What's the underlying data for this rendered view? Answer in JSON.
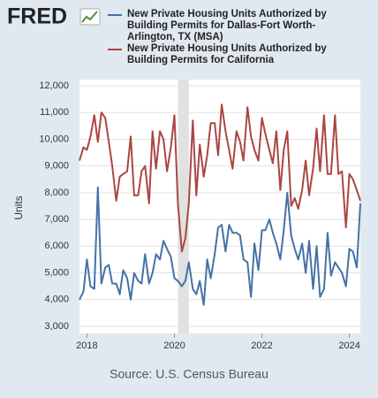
{
  "logo": "FRED",
  "chart_data": {
    "type": "line",
    "y_label": "Units",
    "source": "Source: U.S. Census Bureau",
    "x": [
      2017.83,
      2017.92,
      2018,
      2018.08,
      2018.17,
      2018.25,
      2018.33,
      2018.42,
      2018.5,
      2018.58,
      2018.67,
      2018.75,
      2018.83,
      2018.92,
      2019,
      2019.08,
      2019.17,
      2019.25,
      2019.33,
      2019.42,
      2019.5,
      2019.58,
      2019.67,
      2019.75,
      2019.83,
      2019.92,
      2020,
      2020.08,
      2020.17,
      2020.25,
      2020.33,
      2020.42,
      2020.5,
      2020.58,
      2020.67,
      2020.75,
      2020.83,
      2020.92,
      2021,
      2021.08,
      2021.17,
      2021.25,
      2021.33,
      2021.42,
      2021.5,
      2021.58,
      2021.67,
      2021.75,
      2021.83,
      2021.92,
      2022,
      2022.08,
      2022.17,
      2022.25,
      2022.33,
      2022.42,
      2022.5,
      2022.58,
      2022.67,
      2022.75,
      2022.83,
      2022.92,
      2023,
      2023.08,
      2023.17,
      2023.25,
      2023.33,
      2023.42,
      2023.5,
      2023.58,
      2023.67,
      2023.75,
      2023.83,
      2023.92,
      2024,
      2024.08,
      2024.17,
      2024.25
    ],
    "series": [
      {
        "name": "New Private Housing Units Authorized by Building Permits for Dallas-Fort Worth-Arlington, TX (MSA)",
        "color": "#4572a7",
        "values": [
          4000,
          4300,
          5500,
          4500,
          4400,
          8200,
          4600,
          5200,
          5300,
          4600,
          4600,
          4200,
          5100,
          4800,
          4000,
          5000,
          4700,
          4600,
          5700,
          4600,
          5000,
          5700,
          5500,
          6200,
          5900,
          5600,
          4800,
          4700,
          4500,
          4700,
          5400,
          4400,
          4200,
          4700,
          3800,
          5500,
          4800,
          5700,
          6700,
          6800,
          5800,
          6800,
          6500,
          6500,
          6400,
          5500,
          5400,
          4100,
          6100,
          5100,
          6600,
          6600,
          7000,
          6500,
          6100,
          5500,
          6600,
          8000,
          6400,
          5900,
          5500,
          6100,
          5000,
          6200,
          4400,
          6000,
          4100,
          4400,
          6500,
          4900,
          5400,
          5200,
          5000,
          4500,
          5900,
          5800,
          5200,
          7600
        ]
      },
      {
        "name": "New Private Housing Units Authorized by Building Permits for California",
        "color": "#aa4643",
        "values": [
          9200,
          9700,
          9600,
          10100,
          10900,
          9900,
          11000,
          10800,
          9900,
          9000,
          7700,
          8600,
          8700,
          8800,
          10100,
          7900,
          7900,
          8800,
          9000,
          7600,
          10300,
          8900,
          10300,
          10000,
          8800,
          9700,
          10900,
          7600,
          5800,
          6300,
          7600,
          10700,
          7900,
          9800,
          8600,
          9400,
          10600,
          10600,
          9400,
          11300,
          10300,
          9600,
          8900,
          10300,
          9900,
          9200,
          11200,
          10100,
          9600,
          9200,
          10800,
          10200,
          9600,
          9100,
          10300,
          8100,
          9600,
          10300,
          7500,
          7800,
          7400,
          8100,
          9200,
          7900,
          8900,
          10400,
          8800,
          10900,
          8700,
          8700,
          10900,
          8700,
          8800,
          6700,
          8700,
          8500,
          8100,
          7700
        ]
      }
    ],
    "recession": [
      2020.08,
      2020.33
    ],
    "xlim": [
      2017.83,
      2024.25
    ],
    "xticks": [
      2018,
      2020,
      2022,
      2024
    ],
    "ylim": [
      3000,
      12000
    ],
    "yticks": [
      {
        "value": 3000,
        "label": "3,000"
      },
      {
        "value": 4000,
        "label": "4,000"
      },
      {
        "value": 5000,
        "label": "5,000"
      },
      {
        "value": 6000,
        "label": "6,000"
      },
      {
        "value": 7000,
        "label": "7,000"
      },
      {
        "value": 8000,
        "label": "8,000"
      },
      {
        "value": 9000,
        "label": "9,000"
      },
      {
        "value": 10000,
        "label": "10,000"
      },
      {
        "value": 11000,
        "label": "11,000"
      },
      {
        "value": 12000,
        "label": "12,000"
      }
    ],
    "grid": true
  }
}
